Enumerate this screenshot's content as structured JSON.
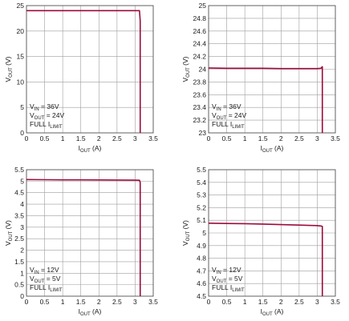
{
  "chart_data": [
    {
      "type": "line",
      "xlabel": {
        "main": "I",
        "sub": "OUT",
        "unit": "(A)"
      },
      "ylabel": {
        "main": "V",
        "sub": "OUT",
        "unit": "(V)"
      },
      "xlim": [
        0,
        3.5
      ],
      "ylim": [
        0,
        25
      ],
      "xticks": [
        "0",
        "0.5",
        "1",
        "1.5",
        "2",
        "2.5",
        "3",
        "3.5"
      ],
      "yticks": [
        "0",
        "5",
        "10",
        "15",
        "20",
        "25"
      ],
      "grid": true,
      "annotations": [
        {
          "main": "V",
          "sub": "IN",
          "rest": " = 36V"
        },
        {
          "main": "V",
          "sub": "OUT",
          "rest": " = 24V"
        },
        {
          "main": "FULL I",
          "sub": "LIMIT",
          "rest": ""
        }
      ],
      "series": [
        {
          "x": [
            0,
            0.5,
            1,
            1.5,
            2,
            2.5,
            3,
            3.12,
            3.14,
            3.14
          ],
          "y": [
            24,
            24,
            24,
            24,
            24,
            24,
            24,
            24,
            22,
            0
          ]
        }
      ]
    },
    {
      "type": "line",
      "xlabel": {
        "main": "I",
        "sub": "OUT",
        "unit": "(A)"
      },
      "ylabel": {
        "main": "V",
        "sub": "OUT",
        "unit": "(V)"
      },
      "xlim": [
        0,
        3.5
      ],
      "ylim": [
        23,
        25
      ],
      "xticks": [
        "0",
        "0.5",
        "1",
        "1.5",
        "2",
        "2.5",
        "3",
        "3.5"
      ],
      "yticks": [
        "23",
        "23.2",
        "23.4",
        "23.6",
        "23.8",
        "24",
        "24.2",
        "24.4",
        "24.6",
        "24.8",
        "25"
      ],
      "grid": true,
      "annotations": [
        {
          "main": "V",
          "sub": "IN",
          "rest": " = 36V"
        },
        {
          "main": "V",
          "sub": "OUT",
          "rest": " = 24V"
        },
        {
          "main": "FULL I",
          "sub": "LIMIT",
          "rest": ""
        }
      ],
      "series": [
        {
          "x": [
            0,
            0.5,
            1,
            1.5,
            2,
            2.5,
            3,
            3.1,
            3.14,
            3.14
          ],
          "y": [
            24.02,
            24.015,
            24.015,
            24.015,
            24.01,
            24.01,
            24.01,
            24.015,
            24.04,
            23
          ]
        }
      ]
    },
    {
      "type": "line",
      "xlabel": {
        "main": "I",
        "sub": "OUT",
        "unit": "(A)"
      },
      "ylabel": {
        "main": "V",
        "sub": "OUT",
        "unit": "(V)"
      },
      "xlim": [
        0,
        3.5
      ],
      "ylim": [
        0,
        5.5
      ],
      "xticks": [
        "0",
        "0.5",
        "1",
        "1.5",
        "2",
        "2.5",
        "3",
        "3.5"
      ],
      "yticks": [
        "0",
        "0.5",
        "1",
        "1.5",
        "2",
        "2.5",
        "3",
        "3.5",
        "4",
        "4.5",
        "5",
        "5.5"
      ],
      "grid": true,
      "annotations": [
        {
          "main": "V",
          "sub": "IN",
          "rest": " = 12V"
        },
        {
          "main": "V",
          "sub": "OUT",
          "rest": " = 5V"
        },
        {
          "main": "FULL I",
          "sub": "LIMIT",
          "rest": ""
        }
      ],
      "series": [
        {
          "x": [
            0,
            0.5,
            1,
            1.5,
            2,
            2.5,
            3,
            3.12,
            3.14,
            3.14
          ],
          "y": [
            5.07,
            5.065,
            5.06,
            5.06,
            5.055,
            5.05,
            5.045,
            5.04,
            4.95,
            0
          ]
        }
      ]
    },
    {
      "type": "line",
      "xlabel": {
        "main": "I",
        "sub": "OUT",
        "unit": "(A)"
      },
      "ylabel": {
        "main": "V",
        "sub": "OUT",
        "unit": "(V)"
      },
      "xlim": [
        0,
        3.5
      ],
      "ylim": [
        4.5,
        5.5
      ],
      "xticks": [
        "0",
        "0.5",
        "1",
        "1.5",
        "2",
        "2.5",
        "3",
        "3.5"
      ],
      "yticks": [
        "4.5",
        "4.6",
        "4.7",
        "4.8",
        "4.9",
        "5",
        "5.1",
        "5.2",
        "5.3",
        "5.4",
        "5.5"
      ],
      "grid": true,
      "annotations": [
        {
          "main": "V",
          "sub": "IN",
          "rest": " = 12V"
        },
        {
          "main": "V",
          "sub": "OUT",
          "rest": " = 5V"
        },
        {
          "main": "FULL I",
          "sub": "LIMIT",
          "rest": ""
        }
      ],
      "series": [
        {
          "x": [
            0,
            0.5,
            1,
            1.5,
            2,
            2.5,
            3,
            3.1,
            3.14,
            3.14
          ],
          "y": [
            5.077,
            5.075,
            5.073,
            5.07,
            5.066,
            5.062,
            5.058,
            5.055,
            5.052,
            4.5
          ]
        }
      ]
    }
  ],
  "colors": {
    "curve": "#9c0c3b",
    "grid": "#9e9e9e",
    "frame": "#555555",
    "text": "#1a1a1a"
  }
}
